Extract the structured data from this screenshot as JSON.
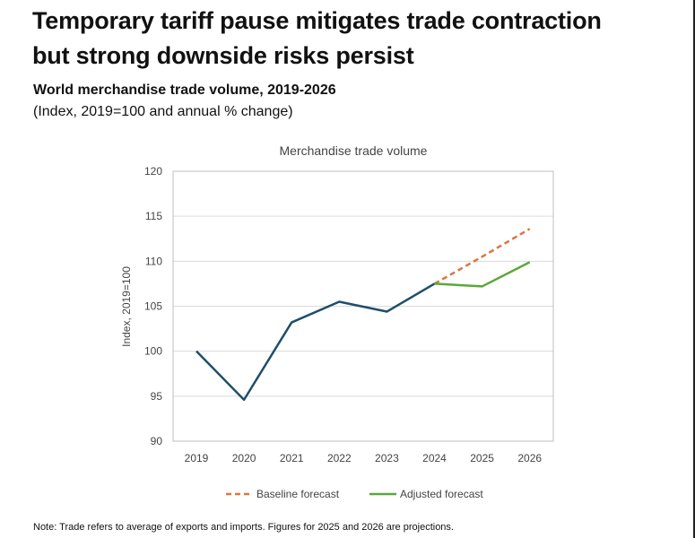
{
  "header": {
    "title_line1": "Temporary tariff pause mitigates trade contraction",
    "title_line2": "but strong downside risks persist",
    "subtitle": "World merchandise trade volume, 2019-2026",
    "subtitle2": "(Index, 2019=100 and annual % change)"
  },
  "note": "Note: Trade refers to average of exports and imports. Figures for 2025 and 2026 are projections.",
  "chart_data": {
    "type": "line",
    "title": "Merchandise trade volume",
    "ylabel": "Index, 2019=100",
    "xlabel": "",
    "ylim": [
      90,
      120
    ],
    "yticks": [
      90,
      95,
      100,
      105,
      110,
      115,
      120
    ],
    "categories": [
      "2019",
      "2020",
      "2021",
      "2022",
      "2023",
      "2024",
      "2025",
      "2026"
    ],
    "grid": true,
    "legend_placement": "bottom",
    "series": [
      {
        "key": "historical",
        "values": [
          100,
          94.6,
          103.2,
          105.5,
          104.4,
          107.5,
          null,
          null
        ],
        "color": "#1f4e6b",
        "dash": false
      },
      {
        "name": "Baseline forecast",
        "values": [
          null,
          null,
          null,
          null,
          null,
          107.5,
          110.5,
          113.6
        ],
        "color": "#d9773e",
        "dash": true
      },
      {
        "name": "Adjusted forecast",
        "values": [
          null,
          null,
          null,
          null,
          null,
          107.5,
          107.2,
          109.9
        ],
        "color": "#5aa83a",
        "dash": false
      }
    ]
  }
}
